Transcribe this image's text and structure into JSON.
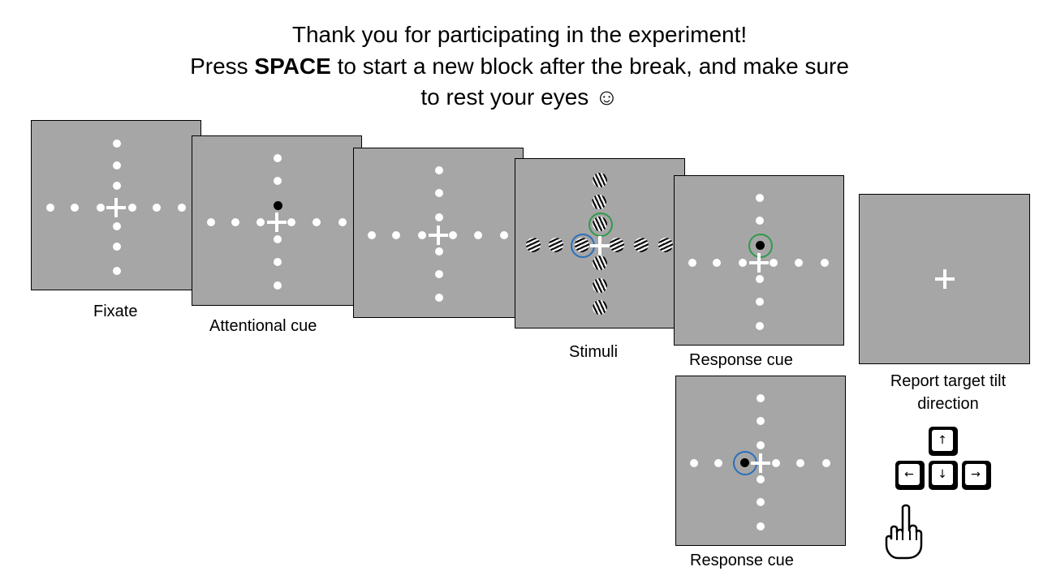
{
  "header": {
    "line1": "Thank you for participating in the experiment!",
    "line2_pre": "Press ",
    "line2_key": "SPACE",
    "line2_post": " to start a new block after the break, and make sure",
    "line3": "to rest your eyes ☺"
  },
  "labels": {
    "fixate": "Fixate",
    "attentional_cue": "Attentional cue",
    "stimuli": "Stimuli",
    "response_cue_top": "Response cue",
    "response_cue_bottom": "Response cue",
    "report": "Report target tilt direction"
  },
  "keys": {
    "up": "↑",
    "left": "←",
    "down": "↓",
    "right": "→"
  },
  "colors": {
    "panel": "#a6a6a6",
    "green_ring": "#2f9a4a",
    "blue_ring": "#2a6fbd"
  },
  "icons": {
    "hand": "hand-pointing-icon"
  }
}
